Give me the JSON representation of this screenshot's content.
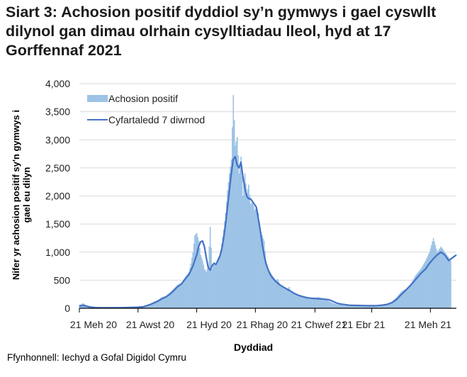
{
  "title": "Siart 3: Achosion positif dyddiol sy’n gymwys i gael cyswllt dilynol gan dimau olrhain cysylltiadau lleol, hyd at 17 Gorffennaf 2021",
  "source": "Ffynhonnell: Iechyd a Gofal Digidol Cymru",
  "colors": {
    "bars": "#9dc3e6",
    "line": "#4472c4",
    "grid": "#d9d9d9",
    "axis": "#000000"
  },
  "chart_data": {
    "type": "bar",
    "title": "Siart 3: Achosion positif dyddiol sy’n gymwys i gael cyswllt dilynol gan dimau olrhain cysylltiadau lleol, hyd at 17 Gorffennaf 2021",
    "xlabel": "Dyddiad",
    "ylabel": "Nifer yr achosion positif sy'n gymwys i gael eu dilyn",
    "ylim": [
      0,
      4000
    ],
    "yticks": [
      0,
      500,
      1000,
      1500,
      2000,
      2500,
      3000,
      3500,
      4000
    ],
    "ytick_labels": [
      "0",
      "500",
      "1,000",
      "1,500",
      "2,000",
      "2,500",
      "3,000",
      "3,500",
      "4,000"
    ],
    "xtick_labels": [
      "21 Meh 20",
      "21 Awst 20",
      "21 Hyd 20",
      "21 Rhag 20",
      "21 Chwef 21",
      "21 Ebr 21",
      "21 Meh 21"
    ],
    "grid": true,
    "legend_position": "top-left inside",
    "legend": [
      "Achosion positif",
      "Cyfartaledd 7 diwrnod"
    ],
    "series": [
      {
        "name": "Achosion positif",
        "type": "bar",
        "x_days": [
          0,
          4,
          8,
          12,
          16,
          20,
          30,
          40,
          50,
          60,
          66,
          70,
          74,
          78,
          82,
          86,
          90,
          94,
          98,
          102,
          106,
          110,
          114,
          116,
          118,
          120,
          122,
          124,
          126,
          128,
          130,
          132,
          134,
          136,
          138,
          140,
          142,
          144,
          146,
          148,
          150,
          152,
          154,
          156,
          158,
          160,
          162,
          164,
          166,
          168,
          170,
          172,
          174,
          176,
          178,
          180,
          182,
          184,
          186,
          188,
          190,
          192,
          194,
          196,
          198,
          200,
          202,
          204,
          206,
          208,
          210,
          212,
          214,
          216,
          218,
          220,
          224,
          228,
          232,
          236,
          240,
          244,
          248,
          252,
          256,
          260,
          264,
          268,
          272,
          276,
          280,
          285,
          290,
          295,
          300,
          305,
          310,
          315,
          320,
          325,
          330,
          335,
          340,
          345,
          350,
          355,
          360,
          364,
          368,
          372,
          376,
          380,
          384,
          386,
          388,
          390,
          392
        ],
        "values": [
          60,
          90,
          40,
          20,
          15,
          10,
          10,
          10,
          15,
          20,
          30,
          60,
          80,
          120,
          150,
          200,
          220,
          280,
          350,
          420,
          450,
          560,
          650,
          800,
          1000,
          1300,
          1340,
          1200,
          950,
          850,
          700,
          650,
          750,
          1450,
          700,
          820,
          780,
          900,
          950,
          1150,
          1400,
          1700,
          2100,
          2400,
          2650,
          3800,
          2900,
          3050,
          2400,
          2700,
          2000,
          2400,
          2050,
          2200,
          1850,
          1900,
          1750,
          1800,
          1700,
          1400,
          1300,
          1200,
          850,
          700,
          650,
          600,
          550,
          500,
          520,
          450,
          400,
          380,
          350,
          330,
          380,
          290,
          250,
          230,
          200,
          180,
          190,
          170,
          200,
          180,
          160,
          120,
          90,
          70,
          60,
          50,
          55,
          60,
          50,
          45,
          40,
          45,
          50,
          60,
          80,
          120,
          200,
          300,
          350,
          450,
          600,
          700,
          850,
          1000,
          1250,
          1000,
          1100,
          1000,
          900,
          850
        ]
      },
      {
        "name": "Cyfartaledd 7 diwrnod",
        "type": "line",
        "x_days": [
          0,
          4,
          8,
          12,
          16,
          20,
          30,
          40,
          50,
          60,
          66,
          70,
          74,
          78,
          82,
          86,
          90,
          94,
          98,
          102,
          106,
          110,
          114,
          118,
          122,
          124,
          126,
          128,
          130,
          132,
          134,
          136,
          138,
          140,
          142,
          144,
          146,
          148,
          150,
          152,
          154,
          156,
          158,
          160,
          162,
          164,
          166,
          168,
          170,
          172,
          174,
          176,
          178,
          180,
          182,
          184,
          186,
          188,
          190,
          192,
          194,
          196,
          198,
          200,
          204,
          208,
          212,
          216,
          220,
          224,
          228,
          232,
          236,
          240,
          244,
          248,
          252,
          256,
          260,
          264,
          268,
          272,
          276,
          280,
          285,
          290,
          295,
          300,
          305,
          310,
          315,
          320,
          325,
          330,
          335,
          340,
          345,
          350,
          355,
          360,
          364,
          368,
          372,
          376,
          380,
          384,
          388,
          392
        ],
        "values": [
          40,
          50,
          35,
          20,
          12,
          10,
          10,
          10,
          12,
          18,
          25,
          45,
          70,
          100,
          130,
          170,
          200,
          250,
          310,
          380,
          430,
          520,
          600,
          750,
          950,
          1100,
          1180,
          1200,
          1100,
          900,
          720,
          680,
          760,
          800,
          780,
          850,
          920,
          1050,
          1250,
          1500,
          1800,
          2100,
          2400,
          2650,
          2700,
          2550,
          2500,
          2600,
          2350,
          2150,
          2000,
          1950,
          1950,
          1900,
          1850,
          1800,
          1600,
          1400,
          1150,
          950,
          800,
          700,
          620,
          560,
          480,
          420,
          380,
          340,
          300,
          260,
          230,
          210,
          190,
          180,
          175,
          170,
          165,
          160,
          150,
          120,
          90,
          75,
          65,
          55,
          52,
          50,
          48,
          45,
          45,
          48,
          55,
          70,
          100,
          160,
          250,
          330,
          420,
          520,
          620,
          700,
          800,
          880,
          950,
          1000,
          950,
          850,
          900,
          950
        ]
      }
    ]
  },
  "axes": {
    "xlabel": "Dyddiad",
    "ylabel_line1": "Nifer yr achosion positif sy'n gymwys i",
    "ylabel_line2": "gael eu dilyn"
  }
}
